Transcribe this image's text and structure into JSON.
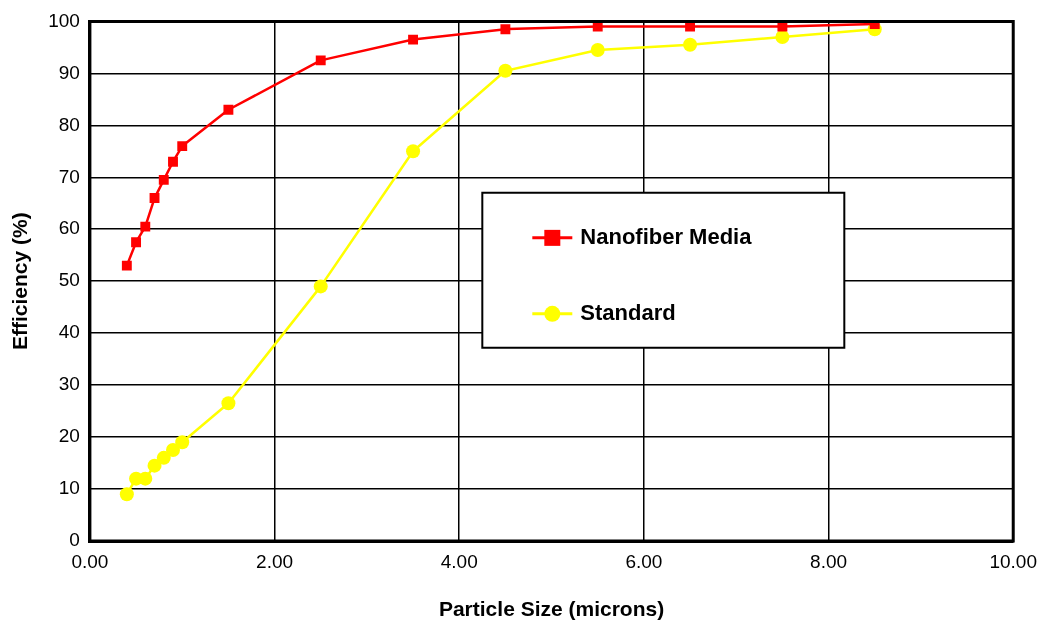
{
  "chart_data": {
    "type": "line",
    "xlabel": "Particle Size (microns)",
    "ylabel": "Efficiency (%)",
    "xlim": [
      0,
      10
    ],
    "xticks": [
      {
        "value": 0,
        "label": "0.00"
      },
      {
        "value": 2,
        "label": "2.00"
      },
      {
        "value": 4,
        "label": "4.00"
      },
      {
        "value": 6,
        "label": "6.00"
      },
      {
        "value": 8,
        "label": "8.00"
      },
      {
        "value": 10,
        "label": "10.00"
      }
    ],
    "ylim": [
      0,
      100
    ],
    "yticks": [
      0,
      10,
      20,
      30,
      40,
      50,
      60,
      70,
      80,
      90,
      100
    ],
    "grid": true,
    "legend": "center",
    "line_style": "solid",
    "series": [
      {
        "name": "Nanofiber Media",
        "color": "#ff0000",
        "marker": "square",
        "x": [
          0.4,
          0.5,
          0.6,
          0.7,
          0.8,
          0.9,
          1.0,
          1.5,
          2.5,
          3.5,
          4.5,
          5.5,
          6.5,
          7.5,
          8.5
        ],
        "values": [
          53,
          57.5,
          60.5,
          66,
          69.5,
          73,
          76,
          83,
          92.5,
          96.5,
          98.5,
          99,
          99,
          99,
          99.5
        ]
      },
      {
        "name": "Standard",
        "color": "#ffff00",
        "marker": "circle",
        "x": [
          0.4,
          0.5,
          0.6,
          0.7,
          0.8,
          0.9,
          1.0,
          1.5,
          2.5,
          3.5,
          4.5,
          5.5,
          6.5,
          7.5,
          8.5
        ],
        "values": [
          9,
          12,
          12,
          14.5,
          16,
          17.5,
          19,
          26.5,
          49,
          75,
          90.5,
          94.5,
          95.5,
          97,
          98.5
        ]
      }
    ]
  }
}
